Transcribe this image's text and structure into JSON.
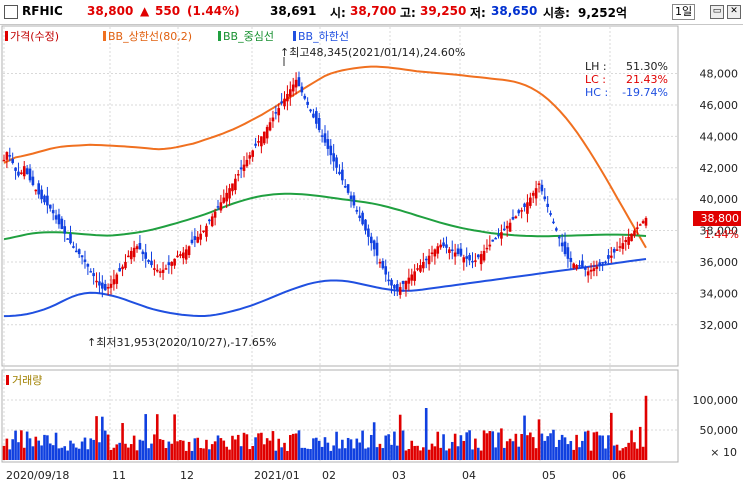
{
  "header": {
    "ticker": "RFHIC",
    "price": "38,800",
    "change_arrow": "▲",
    "change": "550",
    "change_pct": "(1.44%)",
    "volume": "38,691",
    "open_label": "시:",
    "open": "38,700",
    "high_label": "고:",
    "high": "39,250",
    "low_label": "저:",
    "low": "38,650",
    "mcap_label": "시총:",
    "mcap": "9,252억",
    "period": "1일"
  },
  "legend": {
    "price": "가격(수정)",
    "bb_upper": "BB_상한선(80,2)",
    "bb_mid": "BB_중심선",
    "bb_lower": "BB_하한선"
  },
  "annotations": {
    "max": "최고48,345(2021/01/14),24.60%",
    "min": "최저31,953(2020/10/27),-17.65%"
  },
  "stats": {
    "lh_label": "LH :",
    "lh": "51.30%",
    "lc_label": "LC :",
    "lc": "21.43%",
    "hc_label": "HC :",
    "hc": "-19.74%"
  },
  "price_tag": {
    "price": "38,800",
    "pct": "1.44%"
  },
  "volume_panel": {
    "label": "거래량",
    "multiplier": "× 10"
  },
  "colors": {
    "up": "#e00000",
    "down": "#1040e0",
    "bb_upper": "#f07020",
    "bb_mid": "#20a040",
    "bb_lower": "#2050e0",
    "grid": "#d9d9d9"
  },
  "chart_data": [
    {
      "type": "candlestick",
      "ylim": [
        29500,
        49500
      ],
      "yticks": [
        "32,000",
        "34,000",
        "36,000",
        "38,000",
        "40,000",
        "42,000",
        "44,000",
        "46,000",
        "48,000"
      ],
      "ytick_values": [
        32000,
        34000,
        36000,
        38000,
        40000,
        42000,
        44000,
        46000,
        48000
      ],
      "xtick_labels": [
        "2020/09/18",
        "11",
        "12",
        "2021/01",
        "02",
        "03",
        "04",
        "05",
        "06"
      ],
      "series": [
        {
          "name": "가격(수정)",
          "close": [
            42500,
            43000,
            42800,
            42300,
            41800,
            41500,
            41700,
            42100,
            41600,
            41200,
            40900,
            40600,
            40300,
            40000,
            39800,
            39600,
            39400,
            39100,
            38700,
            38400,
            38100,
            37800,
            37500,
            37200,
            36900,
            36700,
            36500,
            36300,
            36000,
            35700,
            35400,
            35100,
            34800,
            34500,
            34300,
            34200,
            34400,
            34600,
            34900,
            35200,
            35400,
            35700,
            36000,
            36400,
            36700,
            36900,
            37000,
            36800,
            36500,
            36200,
            36000,
            35800,
            35600,
            35500,
            35400,
            35500,
            35600,
            35800,
            36000,
            36200,
            36400,
            36500,
            36600,
            36800,
            37000,
            37200,
            37400,
            37600,
            37800,
            38000,
            38300,
            38600,
            38900,
            39200,
            39500,
            39800,
            40100,
            40400,
            40700,
            41000,
            41300,
            41600,
            41900,
            42200,
            42500,
            42800,
            43100,
            43400,
            43700,
            44000,
            44300,
            44600,
            44900,
            45200,
            45500,
            45800,
            46100,
            46400,
            46700,
            47000,
            47300,
            47600,
            47200,
            46800,
            46400,
            46000,
            45600,
            45200,
            44800,
            44400,
            44000,
            43600,
            43200,
            42800,
            42400,
            42000,
            41600,
            41200,
            40800,
            40400,
            40000,
            39600,
            39200,
            38800,
            38400,
            38000,
            37600,
            37200,
            36800,
            36400,
            36000,
            35600,
            35200,
            34800,
            34500,
            34300,
            34200,
            34400,
            34600,
            34800,
            35000,
            35200,
            35400,
            35600,
            35800,
            36000,
            36200,
            36400,
            36600,
            36800,
            37000,
            37100,
            37000,
            36900,
            36800,
            36700,
            36600,
            36500,
            36400,
            36300,
            36200,
            36100,
            36000,
            36100,
            36300,
            36500,
            36700,
            36900,
            37100,
            37300,
            37500,
            37700,
            37900,
            38100,
            38300,
            38500,
            38700,
            38900,
            39100,
            39300,
            39500,
            39800,
            40100,
            40400,
            40700,
            41000,
            40500,
            40000,
            39500,
            39000,
            38500,
            38000,
            37500,
            37000,
            36500,
            36200,
            36000,
            35900,
            35800,
            35700,
            35600,
            35500,
            35400,
            35500,
            35600,
            35700,
            35800,
            35900,
            36000,
            36200,
            36400,
            36600,
            36800,
            37000,
            37200,
            37400,
            37600,
            37800,
            38000,
            38200,
            38400,
            38600,
            38800
          ]
        },
        {
          "name": "BB_상한선(80,2)",
          "values": [
            42300,
            42480,
            42660,
            42730,
            42810,
            42900,
            43000,
            43100,
            43200,
            43280,
            43340,
            43380,
            43400,
            43420,
            43440,
            43460,
            43450,
            43440,
            43420,
            43400,
            43380,
            43360,
            43330,
            43300,
            43270,
            43240,
            43200,
            43180,
            43200,
            43240,
            43300,
            43380,
            43460,
            43540,
            43650,
            43780,
            43900,
            44020,
            44150,
            44300,
            44450,
            44620,
            44800,
            44990,
            45180,
            45380,
            45600,
            45820,
            46050,
            46280,
            46510,
            46740,
            46970,
            47200,
            47420,
            47640,
            47850,
            48000,
            48110,
            48200,
            48270,
            48330,
            48380,
            48420,
            48440,
            48440,
            48420,
            48390,
            48350,
            48300,
            48250,
            48200,
            48150,
            48110,
            48080,
            48050,
            48020,
            47990,
            47960,
            47920,
            47880,
            47840,
            47800,
            47760,
            47720,
            47680,
            47640,
            47600,
            47550,
            47480,
            47380,
            47250,
            47080,
            46870,
            46620,
            46320,
            45980,
            45600,
            45180,
            44720,
            44230,
            43700,
            43140,
            42560,
            41960,
            41340,
            40710,
            40070,
            39430,
            38790,
            38160,
            37530,
            36900
          ]
        },
        {
          "name": "BB_중심선",
          "values": [
            37450,
            37520,
            37600,
            37680,
            37760,
            37820,
            37860,
            37880,
            37890,
            37890,
            37880,
            37860,
            37830,
            37800,
            37770,
            37740,
            37710,
            37690,
            37680,
            37690,
            37720,
            37760,
            37810,
            37860,
            37920,
            37990,
            38070,
            38160,
            38260,
            38360,
            38460,
            38570,
            38680,
            38790,
            38910,
            39030,
            39160,
            39300,
            39450,
            39590,
            39720,
            39840,
            39950,
            40050,
            40140,
            40210,
            40260,
            40300,
            40330,
            40340,
            40340,
            40330,
            40310,
            40280,
            40240,
            40200,
            40150,
            40100,
            40050,
            40000,
            39950,
            39900,
            39850,
            39800,
            39740,
            39670,
            39590,
            39500,
            39400,
            39300,
            39190,
            39080,
            38960,
            38850,
            38740,
            38630,
            38520,
            38420,
            38320,
            38230,
            38150,
            38080,
            38010,
            37950,
            37890,
            37840,
            37800,
            37760,
            37730,
            37700,
            37680,
            37660,
            37650,
            37640,
            37640,
            37640,
            37650,
            37660,
            37670,
            37680,
            37690,
            37700,
            37710,
            37720,
            37730,
            37740,
            37740,
            37740,
            37730,
            37720,
            37700,
            37680,
            37650
          ]
        },
        {
          "name": "BB_하한선",
          "values": [
            32550,
            32560,
            32580,
            32620,
            32680,
            32760,
            32860,
            32980,
            33120,
            33280,
            33460,
            33640,
            33800,
            33920,
            34000,
            34040,
            34030,
            33990,
            33920,
            33840,
            33740,
            33620,
            33490,
            33360,
            33230,
            33100,
            32990,
            32900,
            32820,
            32750,
            32690,
            32640,
            32600,
            32570,
            32560,
            32560,
            32590,
            32640,
            32710,
            32790,
            32880,
            32980,
            33090,
            33210,
            33340,
            33480,
            33630,
            33780,
            33930,
            34080,
            34220,
            34350,
            34470,
            34580,
            34670,
            34740,
            34790,
            34820,
            34820,
            34800,
            34760,
            34700,
            34620,
            34540,
            34460,
            34380,
            34310,
            34250,
            34200,
            34170,
            34160,
            34170,
            34200,
            34240,
            34290,
            34340,
            34390,
            34440,
            34490,
            34540,
            34590,
            34640,
            34690,
            34740,
            34790,
            34840,
            34890,
            34940,
            34990,
            35040,
            35090,
            35140,
            35190,
            35240,
            35290,
            35340,
            35390,
            35440,
            35490,
            35540,
            35590,
            35640,
            35690,
            35740,
            35790,
            35840,
            35890,
            35940,
            35990,
            36040,
            36090,
            36140,
            36190
          ]
        }
      ]
    },
    {
      "type": "bar",
      "name": "거래량",
      "ylim": [
        0,
        140000
      ],
      "yticks": [
        "50,000",
        "100,000"
      ],
      "ytick_values": [
        50000,
        100000
      ]
    }
  ]
}
